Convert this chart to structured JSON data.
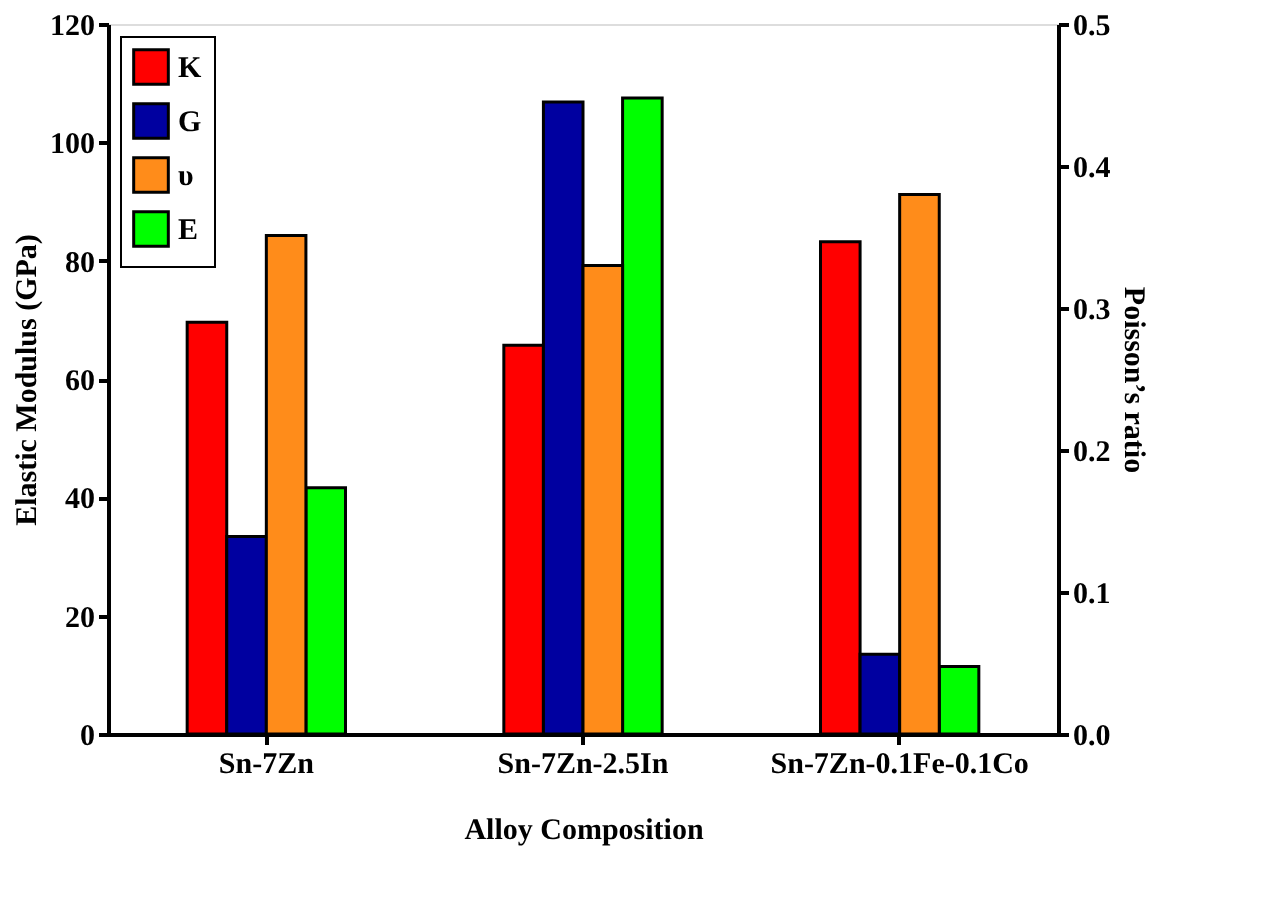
{
  "chart_data": {
    "type": "bar",
    "xlabel": "Alloy Composition",
    "ylabel": "Elastic Modulus (GPa)",
    "y2label": "Poisson’s ratio",
    "categories": [
      "Sn-7Zn",
      "Sn-7Zn-2.5In",
      "Sn-7Zn-0.1Fe-0.1Co"
    ],
    "series": [
      {
        "name": "K",
        "color": "#ff0000",
        "values": [
          69.6,
          65.7,
          83.2
        ]
      },
      {
        "name": "G",
        "color": "#0000a0",
        "values": [
          33.4,
          106.8,
          13.5
        ]
      },
      {
        "name": "υ",
        "color": "#ff8c1a",
        "axis": "y2",
        "values": [
          0.351,
          0.33,
          0.38
        ]
      },
      {
        "name": "E",
        "color": "#00ff00",
        "values": [
          41.6,
          107.5,
          11.4
        ]
      }
    ],
    "ylim": [
      0,
      120
    ],
    "yticks": [
      0,
      20,
      40,
      60,
      80,
      100,
      120
    ],
    "y2lim": [
      0,
      0.5
    ],
    "y2ticks": [
      {
        "value": 0,
        "label": "0.0"
      },
      0.1,
      0.2,
      0.3,
      0.4,
      0.5
    ],
    "legend": "top left",
    "grid": false
  }
}
